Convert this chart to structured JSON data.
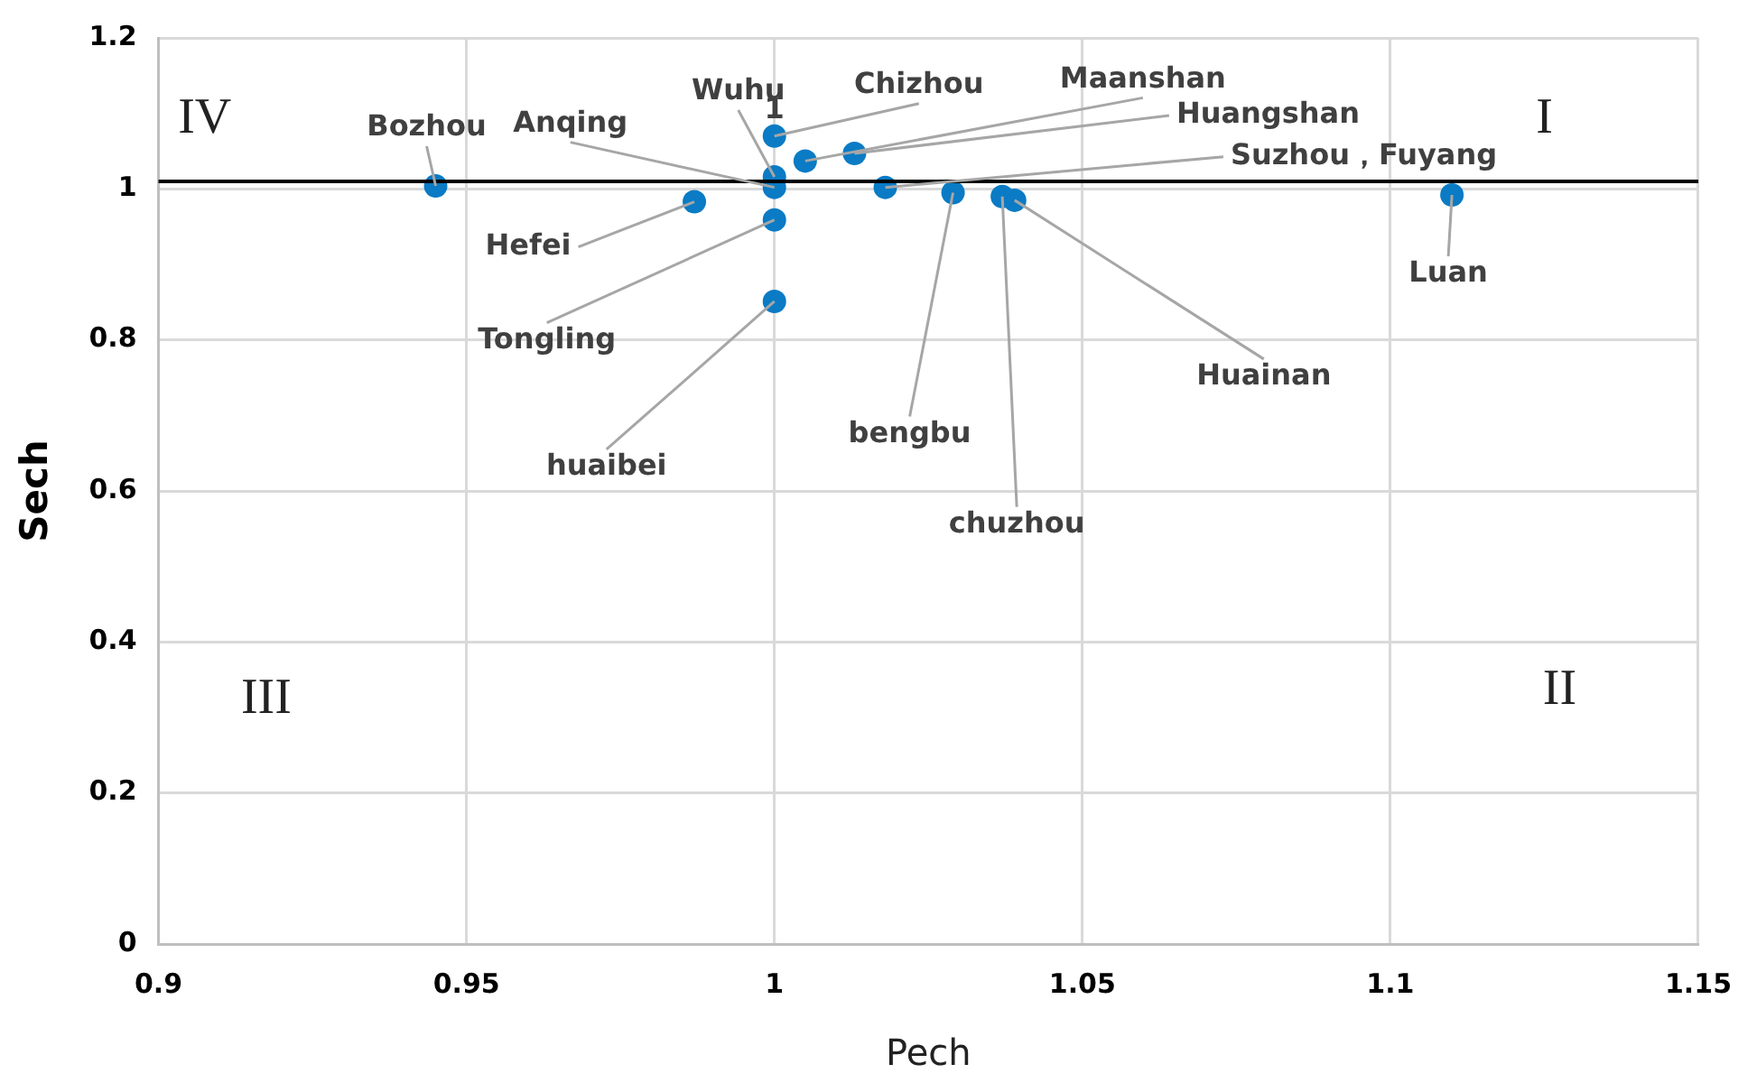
{
  "chart_data": {
    "type": "scatter",
    "xlabel": "Pech",
    "ylabel": "Sech",
    "xlim": [
      0.9,
      1.15
    ],
    "xticks": [
      0.9,
      0.95,
      1,
      1.05,
      1.1,
      1.15
    ],
    "ylim": [
      0,
      1.2
    ],
    "yticks": [
      0,
      0.2,
      0.4,
      0.6,
      0.8,
      1,
      1.2
    ],
    "grid": true,
    "legend": false,
    "marker": "circle",
    "series": [
      {
        "name": "Chizhou",
        "color": "#0a7bc4",
        "x": [
          1
        ],
        "values": [
          1.07
        ]
      },
      {
        "name": "Wuhu",
        "color": "#0a7bc4",
        "x": [
          1
        ],
        "values": [
          1.016
        ]
      },
      {
        "name": "Anqing",
        "color": "#0a7bc4",
        "x": [
          1
        ],
        "values": [
          1.002
        ]
      },
      {
        "name": "Bozhou",
        "color": "#0a7bc4",
        "x": [
          0.945
        ],
        "values": [
          1.004
        ]
      },
      {
        "name": "Hefei",
        "color": "#0a7bc4",
        "x": [
          0.987
        ],
        "values": [
          0.983
        ]
      },
      {
        "name": "Tongling",
        "color": "#0a7bc4",
        "x": [
          1
        ],
        "values": [
          0.959
        ]
      },
      {
        "name": "huaibei",
        "color": "#0a7bc4",
        "x": [
          1
        ],
        "values": [
          0.851
        ]
      },
      {
        "name": "Maanshan",
        "color": "#0a7bc4",
        "x": [
          1.005
        ],
        "values": [
          1.037
        ]
      },
      {
        "name": "Huangshan",
        "color": "#0a7bc4",
        "x": [
          1.013
        ],
        "values": [
          1.047
        ]
      },
      {
        "name": "Suzhou，Fuyang",
        "color": "#0a7bc4",
        "x": [
          1.018
        ],
        "values": [
          1.002
        ]
      },
      {
        "name": "bengbu",
        "color": "#0a7bc4",
        "x": [
          1.029
        ],
        "values": [
          0.995
        ]
      },
      {
        "name": "chuzhou",
        "color": "#0a7bc4",
        "x": [
          1.037
        ],
        "values": [
          0.99
        ]
      },
      {
        "name": "Huainan",
        "color": "#0a7bc4",
        "x": [
          1.039
        ],
        "values": [
          0.985
        ]
      },
      {
        "name": "Luan",
        "color": "#0a7bc4",
        "x": [
          1.11
        ],
        "values": [
          0.992
        ]
      }
    ],
    "ref_lines": [
      {
        "axis": "y",
        "value": 1.01,
        "color": "#000000"
      }
    ],
    "annotations": [
      "IV",
      "I",
      "III",
      "II",
      {
        "text": "1",
        "x": 1,
        "y": 1.07
      }
    ]
  }
}
